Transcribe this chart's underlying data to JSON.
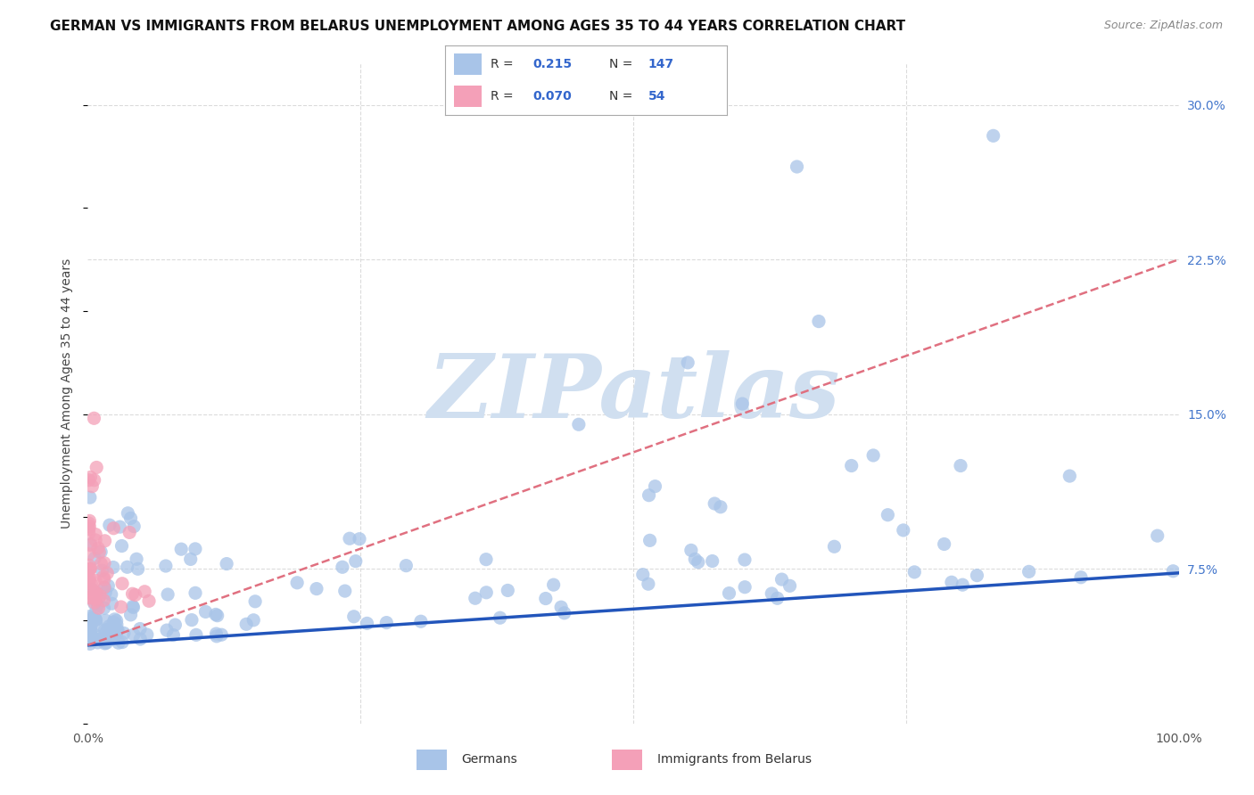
{
  "title": "GERMAN VS IMMIGRANTS FROM BELARUS UNEMPLOYMENT AMONG AGES 35 TO 44 YEARS CORRELATION CHART",
  "source": "Source: ZipAtlas.com",
  "ylabel": "Unemployment Among Ages 35 to 44 years",
  "xlim": [
    0,
    1.0
  ],
  "ylim": [
    0,
    0.32
  ],
  "german_color": "#a8c4e8",
  "belarus_color": "#f4a0b8",
  "german_R": 0.215,
  "german_N": 147,
  "belarus_R": 0.07,
  "belarus_N": 54,
  "watermark_text": "ZIPatlas",
  "watermark_color": "#d0dff0",
  "background_color": "#ffffff",
  "grid_color": "#cccccc",
  "trend_german_color": "#2255bb",
  "trend_belarus_color": "#e07080",
  "title_fontsize": 11,
  "source_fontsize": 9,
  "axis_label_fontsize": 10,
  "tick_fontsize": 10,
  "legend_german_text": "R =  0.215   N = 147",
  "legend_belarus_text": "R = 0.070   N =  54",
  "german_trend_start_y": 0.038,
  "german_trend_end_y": 0.073,
  "belarus_trend_start_y": 0.038,
  "belarus_trend_end_y": 0.225
}
